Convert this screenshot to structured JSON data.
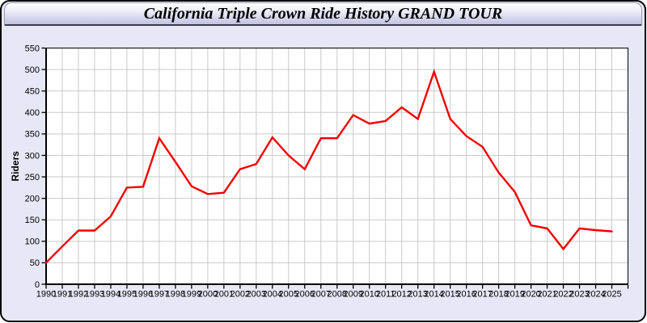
{
  "title_bar": {
    "title": "California Triple Crown Ride History GRAND TOUR"
  },
  "chart_data": {
    "type": "line",
    "title": "California Triple Crown Ride History GRAND TOUR",
    "xlabel": "",
    "ylabel": "Riders",
    "x": [
      1990,
      1991,
      1992,
      1993,
      1994,
      1995,
      1996,
      1997,
      1998,
      1999,
      2000,
      2001,
      2002,
      2003,
      2004,
      2005,
      2006,
      2007,
      2008,
      2009,
      2010,
      2011,
      2012,
      2013,
      2014,
      2015,
      2016,
      2017,
      2018,
      2019,
      2020,
      2021,
      2022,
      2023,
      2024,
      2025
    ],
    "values": [
      50,
      88,
      125,
      125,
      158,
      225,
      227,
      340,
      285,
      228,
      210,
      213,
      268,
      280,
      342,
      300,
      268,
      340,
      340,
      394,
      374,
      380,
      412,
      385,
      495,
      385,
      345,
      320,
      260,
      215,
      137,
      130,
      82,
      130,
      126,
      123
    ],
    "ylim": [
      0,
      550
    ],
    "ytick_step": 50,
    "xlim": [
      1990,
      2026
    ],
    "grid": true,
    "legend": false,
    "colors": {
      "line": "#f20000",
      "grid": "#c9c9c9",
      "axis": "#000000",
      "plot_bg": "#ffffff",
      "page_bg": "#e7e7f6",
      "tick_label": "#000000"
    }
  }
}
